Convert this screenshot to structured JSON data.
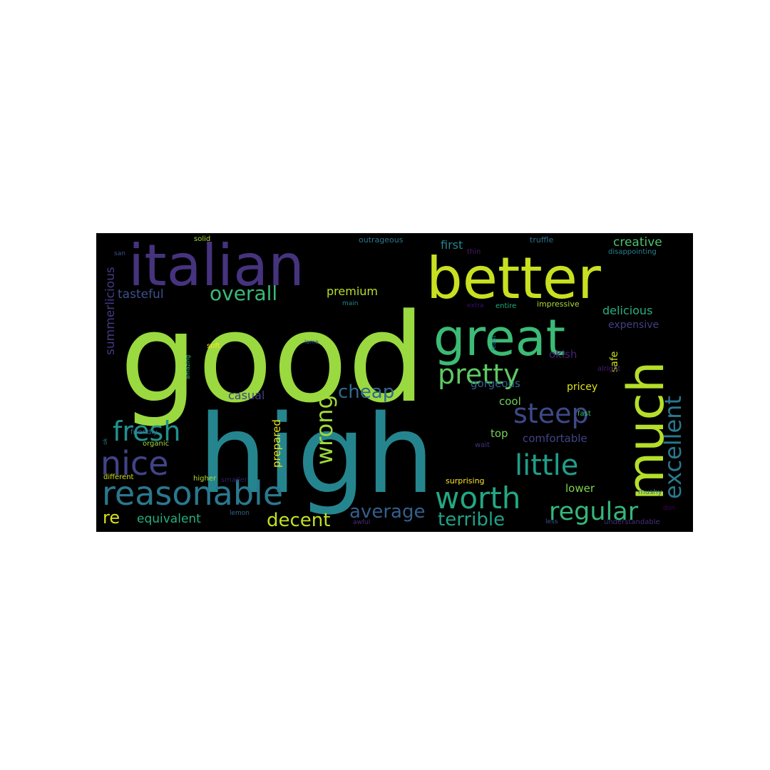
{
  "words": [
    "good",
    "high",
    "italian",
    "better",
    "great",
    "much",
    "reasonable",
    "nice",
    "fresh",
    "pretty",
    "steep",
    "little",
    "worth",
    "regular",
    "excellent",
    "wrong",
    "overall",
    "cheap",
    "average",
    "terrible",
    "decent",
    "re",
    "equivalent",
    "tasteful",
    "summerlicious",
    "casual",
    "prepared",
    "premium",
    "first",
    "creative",
    "delicious",
    "expensive",
    "okish",
    "safe",
    "gorgeous",
    "pricey",
    "cool",
    "top",
    "comfortable",
    "lower",
    "surprising",
    "mushy",
    "impressive",
    "entire",
    "extra",
    "truffle",
    "outrageous",
    "solid",
    "san",
    "thin",
    "disappointing",
    "main",
    "soft",
    "lame",
    "amazing",
    "least",
    "alright",
    "fast",
    "friendly",
    "ok",
    "organic",
    "wait",
    "different",
    "higher",
    "smaller",
    "lemon",
    "awful",
    "less",
    "understandable",
    "don"
  ]
}
